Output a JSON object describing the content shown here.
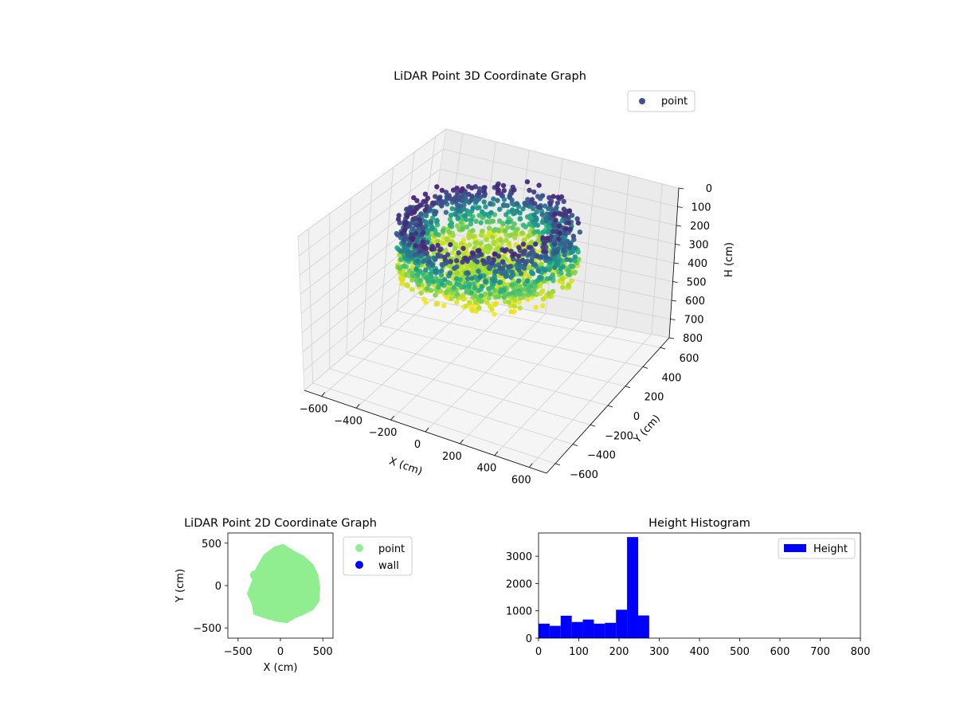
{
  "chart_data": [
    {
      "type": "scatter",
      "subtype": "3d",
      "title": "LiDAR Point 3D Coordinate Graph",
      "xlabel": "X (cm)",
      "ylabel": "Y (cm)",
      "zlabel": "H (cm)",
      "xlim": [
        -700,
        700
      ],
      "ylim": [
        -700,
        700
      ],
      "zlim": [
        0,
        800
      ],
      "zaxis_inverted": true,
      "x_ticks": [
        "−600",
        "−400",
        "−200",
        "0",
        "200",
        "400",
        "600"
      ],
      "y_ticks": [
        "−600",
        "−400",
        "−200",
        "0",
        "200",
        "400",
        "600"
      ],
      "z_ticks": [
        "0",
        "100",
        "200",
        "300",
        "400",
        "500",
        "600",
        "700",
        "800"
      ],
      "colormap": "viridis",
      "color_by": "height",
      "legend": {
        "entries": [
          {
            "label": "point",
            "color": "#3b528b"
          }
        ],
        "position": "upper right"
      },
      "grid": true,
      "description_of_points": "Ring-shaped cloud roughly 400–500 cm in radius with wall heights 0–300 cm; darker (purple/blue) upper rim, yellow-green lower ring"
    },
    {
      "type": "scatter",
      "title": "LiDAR Point 2D Coordinate Graph",
      "xlabel": "X (cm)",
      "ylabel": "Y (cm)",
      "xlim": [
        -620,
        620
      ],
      "ylim": [
        -620,
        620
      ],
      "x_ticks": [
        -500,
        0,
        500
      ],
      "y_ticks": [
        500,
        0,
        -500
      ],
      "series": [
        {
          "name": "point",
          "color": "#90ee90"
        },
        {
          "name": "wall",
          "color": "#0000ff"
        }
      ],
      "legend_position": "outside right"
    },
    {
      "type": "bar",
      "subtype": "histogram",
      "title": "Height Histogram",
      "xlim": [
        0,
        800
      ],
      "ylim": [
        0,
        3850
      ],
      "x_ticks": [
        0,
        100,
        200,
        300,
        400,
        500,
        600,
        700,
        800
      ],
      "y_ticks": [
        0,
        1000,
        2000,
        3000
      ],
      "bin_width": 27.5,
      "bins": [
        {
          "start": 0,
          "count": 530
        },
        {
          "start": 27.5,
          "count": 450
        },
        {
          "start": 55,
          "count": 820
        },
        {
          "start": 82.5,
          "count": 590
        },
        {
          "start": 110,
          "count": 680
        },
        {
          "start": 137.5,
          "count": 530
        },
        {
          "start": 165,
          "count": 560
        },
        {
          "start": 192.5,
          "count": 1040
        },
        {
          "start": 220,
          "count": 3700
        },
        {
          "start": 247.5,
          "count": 830
        }
      ],
      "series": [
        {
          "name": "Height",
          "color": "#0000ff"
        }
      ],
      "legend_position": "upper right"
    }
  ]
}
